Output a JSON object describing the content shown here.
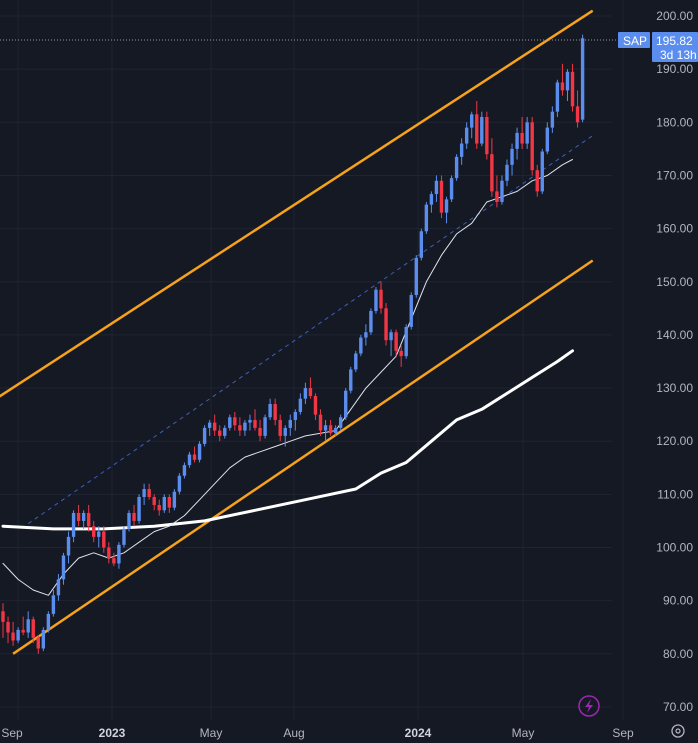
{
  "chart_data": {
    "type": "candlestick",
    "symbol": "SAP",
    "last_price": "195.82",
    "countdown": "3d 13h",
    "colors": {
      "up": "#5b8def",
      "down": "#f23645",
      "channel": "#f7a21b",
      "background": "#151924",
      "grid": "#1f2432"
    },
    "y_axis": {
      "min": 70,
      "max": 200,
      "ticks": [
        "200.00",
        "190.00",
        "180.00",
        "170.00",
        "160.00",
        "150.00",
        "140.00",
        "130.00",
        "120.00",
        "110.00",
        "100.00",
        "90.00",
        "80.00",
        "70.00"
      ]
    },
    "x_axis": {
      "labels": [
        {
          "text": "Sep",
          "bold": false
        },
        {
          "text": "2023",
          "bold": true
        },
        {
          "text": "May",
          "bold": false
        },
        {
          "text": "Aug",
          "bold": false
        },
        {
          "text": "2024",
          "bold": true
        },
        {
          "text": "May",
          "bold": false
        },
        {
          "text": "Sep",
          "bold": false
        }
      ]
    },
    "candles": [
      [
        88,
        89.5,
        83,
        86
      ],
      [
        86,
        87,
        82,
        84
      ],
      [
        84,
        86,
        81.5,
        82.5
      ],
      [
        82.5,
        85,
        82,
        84.5
      ],
      [
        84.5,
        87,
        83.5,
        84
      ],
      [
        84,
        88,
        83,
        86.5
      ],
      [
        86.5,
        87,
        82,
        83
      ],
      [
        83,
        83.5,
        80,
        81
      ],
      [
        81,
        85,
        80.5,
        84.5
      ],
      [
        84.5,
        88,
        84,
        87.5
      ],
      [
        87.5,
        92,
        87,
        91
      ],
      [
        91,
        95,
        90,
        94
      ],
      [
        94,
        99,
        93,
        98.5
      ],
      [
        98.5,
        103,
        97,
        102
      ],
      [
        102,
        107,
        101,
        106.5
      ],
      [
        106.5,
        108,
        104,
        105
      ],
      [
        105,
        107,
        103.5,
        106.5
      ],
      [
        106.5,
        108,
        103,
        104
      ],
      [
        104,
        105,
        101,
        102
      ],
      [
        102,
        104,
        100,
        103
      ],
      [
        103,
        104,
        99,
        100
      ],
      [
        100,
        101,
        97,
        98
      ],
      [
        98,
        99,
        96.5,
        97
      ],
      [
        97,
        101,
        96,
        100.5
      ],
      [
        100.5,
        104,
        100,
        103.5
      ],
      [
        103.5,
        107,
        103,
        106.5
      ],
      [
        106.5,
        108,
        104,
        105
      ],
      [
        105,
        110,
        104.5,
        109.5
      ],
      [
        109.5,
        112,
        108,
        111
      ],
      [
        111,
        112,
        109,
        109.5
      ],
      [
        109.5,
        110,
        107,
        108
      ],
      [
        108,
        109,
        106,
        107
      ],
      [
        107,
        110,
        106.5,
        109.5
      ],
      [
        109.5,
        110,
        106.5,
        107.5
      ],
      [
        107.5,
        111,
        107,
        110.5
      ],
      [
        110.5,
        114,
        110,
        113.5
      ],
      [
        113.5,
        116,
        113,
        115.5
      ],
      [
        115.5,
        118,
        115,
        117.5
      ],
      [
        117.5,
        119,
        116,
        116.5
      ],
      [
        116.5,
        120,
        116,
        119.5
      ],
      [
        119.5,
        123,
        119,
        122.5
      ],
      [
        122.5,
        124,
        121,
        123.5
      ],
      [
        123.5,
        125,
        121,
        122
      ],
      [
        122,
        123,
        120,
        121
      ],
      [
        121,
        123,
        120.5,
        122.5
      ],
      [
        122.5,
        125,
        122,
        124.5
      ],
      [
        124.5,
        125.5,
        122,
        123
      ],
      [
        123,
        124.5,
        121,
        122
      ],
      [
        122,
        124,
        121,
        123.5
      ],
      [
        123.5,
        125,
        122,
        124
      ],
      [
        124,
        126,
        122,
        122.5
      ],
      [
        122.5,
        124,
        120,
        121
      ],
      [
        121,
        125,
        120.5,
        124.5
      ],
      [
        124.5,
        128,
        124,
        127
      ],
      [
        127,
        128,
        123,
        124
      ],
      [
        124,
        125,
        120,
        121
      ],
      [
        121,
        123,
        119,
        122.5
      ],
      [
        122.5,
        125,
        121,
        124
      ],
      [
        124,
        126,
        122,
        125.5
      ],
      [
        125.5,
        129,
        125,
        128
      ],
      [
        128,
        131,
        127,
        130
      ],
      [
        130,
        132,
        128,
        128.5
      ],
      [
        128.5,
        129,
        124,
        125
      ],
      [
        125,
        126,
        121,
        122
      ],
      [
        122,
        124,
        120,
        123
      ],
      [
        123,
        124,
        121,
        121.5
      ],
      [
        121.5,
        123,
        121,
        122.5
      ],
      [
        122.5,
        125,
        122,
        124.5
      ],
      [
        124.5,
        130,
        124,
        129.5
      ],
      [
        129.5,
        134,
        129,
        133.5
      ],
      [
        133.5,
        137,
        133,
        136.5
      ],
      [
        136.5,
        140,
        136,
        139.5
      ],
      [
        139.5,
        142,
        138,
        140.5
      ],
      [
        140.5,
        145,
        140,
        144.5
      ],
      [
        144.5,
        149,
        144,
        148.5
      ],
      [
        148.5,
        150,
        144,
        145
      ],
      [
        145,
        146,
        138,
        139
      ],
      [
        139,
        141,
        136,
        140.5
      ],
      [
        140.5,
        141,
        136,
        137
      ],
      [
        137,
        138,
        134,
        136
      ],
      [
        136,
        142,
        135.5,
        141.5
      ],
      [
        141.5,
        148,
        141,
        147.5
      ],
      [
        147.5,
        155,
        147,
        154.5
      ],
      [
        154.5,
        160,
        154,
        159.5
      ],
      [
        159.5,
        165,
        159,
        164.5
      ],
      [
        164.5,
        167,
        163,
        166.5
      ],
      [
        166.5,
        170,
        165,
        169
      ],
      [
        169,
        170,
        162,
        163
      ],
      [
        163,
        166,
        161,
        165.5
      ],
      [
        165.5,
        170,
        165,
        169.5
      ],
      [
        169.5,
        174,
        169,
        173.5
      ],
      [
        173.5,
        177,
        172,
        176
      ],
      [
        176,
        180,
        175,
        179
      ],
      [
        179,
        182,
        177,
        181.5
      ],
      [
        181.5,
        184,
        175,
        176
      ],
      [
        176,
        182,
        175.5,
        181
      ],
      [
        181,
        182,
        173,
        174
      ],
      [
        174,
        177,
        166,
        167
      ],
      [
        167,
        170,
        164,
        165
      ],
      [
        165,
        170,
        164.5,
        169
      ],
      [
        169,
        173,
        168,
        172
      ],
      [
        172,
        176,
        170,
        175
      ],
      [
        175,
        179,
        173,
        178
      ],
      [
        178,
        181,
        175,
        176
      ],
      [
        176,
        181,
        175,
        180
      ],
      [
        180,
        181,
        170,
        171
      ],
      [
        171,
        172,
        166,
        167
      ],
      [
        167,
        175,
        166.5,
        174.5
      ],
      [
        174.5,
        180,
        174,
        179
      ],
      [
        179,
        183,
        178,
        182
      ],
      [
        182,
        188,
        181,
        187.5
      ],
      [
        187.5,
        191,
        185,
        186
      ],
      [
        186,
        190,
        184,
        189.5
      ],
      [
        189.5,
        191,
        182,
        183
      ],
      [
        183,
        186,
        179,
        180
      ],
      [
        180.5,
        196.5,
        180,
        195.82
      ]
    ],
    "ma_fast": [
      [
        0,
        97
      ],
      [
        3,
        94
      ],
      [
        6,
        92
      ],
      [
        9,
        91
      ],
      [
        12,
        95
      ],
      [
        15,
        98
      ],
      [
        18,
        99
      ],
      [
        21,
        98
      ],
      [
        24,
        99
      ],
      [
        27,
        101
      ],
      [
        30,
        103
      ],
      [
        33,
        104
      ],
      [
        36,
        106
      ],
      [
        39,
        109
      ],
      [
        42,
        112
      ],
      [
        45,
        115
      ],
      [
        48,
        117
      ],
      [
        51,
        118
      ],
      [
        54,
        119
      ],
      [
        57,
        120
      ],
      [
        60,
        121
      ],
      [
        63,
        121.5
      ],
      [
        66,
        122
      ],
      [
        69,
        126
      ],
      [
        72,
        130
      ],
      [
        75,
        133
      ],
      [
        78,
        136
      ],
      [
        81,
        143
      ],
      [
        84,
        150
      ],
      [
        87,
        155
      ],
      [
        90,
        159
      ],
      [
        93,
        161
      ],
      [
        96,
        165
      ],
      [
        99,
        166
      ],
      [
        102,
        167
      ],
      [
        105,
        169
      ],
      [
        108,
        170
      ],
      [
        111,
        172
      ],
      [
        113,
        173
      ]
    ],
    "ma_slow": [
      [
        0,
        104
      ],
      [
        10,
        103.5
      ],
      [
        20,
        103.5
      ],
      [
        30,
        104
      ],
      [
        40,
        105
      ],
      [
        50,
        107
      ],
      [
        60,
        109
      ],
      [
        70,
        111
      ],
      [
        75,
        114
      ],
      [
        80,
        116
      ],
      [
        85,
        120
      ],
      [
        90,
        124
      ],
      [
        95,
        126
      ],
      [
        100,
        129
      ],
      [
        105,
        132
      ],
      [
        110,
        135
      ],
      [
        113,
        137
      ]
    ],
    "channel_upper": [
      [
        -3,
        127
      ],
      [
        117,
        201
      ]
    ],
    "channel_lower": [
      [
        2,
        80
      ],
      [
        117,
        154
      ]
    ],
    "channel_mid": [
      [
        5,
        104.5
      ],
      [
        117,
        177.5
      ]
    ]
  }
}
